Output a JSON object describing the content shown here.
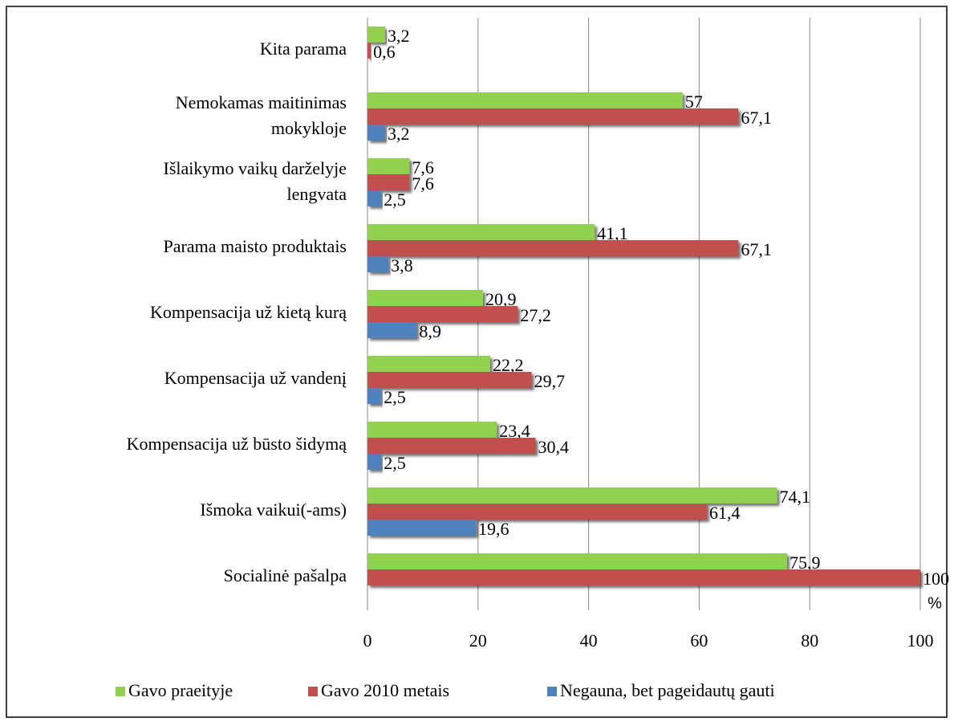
{
  "chart_data": {
    "type": "bar",
    "orientation": "horizontal",
    "categories": [
      "Kita parama",
      "Nemokamas maitinimas mokykloje",
      "Išlaikymo vaikų darželyje lengvata",
      "Parama maisto produktais",
      "Kompensacija už kietą kurą",
      "Kompensacija už vandenį",
      "Kompensacija už būsto šidymą",
      "Išmoka vaikui(-ams)",
      "Socialinė pašalpa"
    ],
    "series": [
      {
        "name": "Gavo praeityje",
        "color": "#92d050",
        "values": [
          3.2,
          57,
          7.6,
          41.1,
          20.9,
          22.2,
          23.4,
          74.1,
          75.9
        ],
        "value_labels": [
          "3,2",
          "57",
          "7,6",
          "41,1",
          "20,9",
          "22,2",
          "23,4",
          "74,1",
          "75,9"
        ]
      },
      {
        "name": "Gavo 2010 metais",
        "color": "#c0504d",
        "values": [
          0.6,
          67.1,
          7.6,
          67.1,
          27.2,
          29.7,
          30.4,
          61.4,
          100
        ],
        "value_labels": [
          "0,6",
          "67,1",
          "7,6",
          "67,1",
          "27,2",
          "29,7",
          "30,4",
          "61,4",
          "100"
        ]
      },
      {
        "name": "Negauna, bet pageidautų gauti",
        "color": "#4f81bd",
        "values": [
          null,
          3.2,
          2.5,
          3.8,
          8.9,
          2.5,
          2.5,
          19.6,
          null
        ],
        "value_labels": [
          null,
          "3,2",
          "2,5",
          "3,8",
          "8,9",
          "2,5",
          "2,5",
          "19,6",
          null
        ]
      }
    ],
    "x_label": "%",
    "xlim": [
      0,
      100
    ],
    "xticks": [
      0,
      20,
      40,
      60,
      80,
      100
    ],
    "grid": true,
    "legend": "bottom"
  }
}
